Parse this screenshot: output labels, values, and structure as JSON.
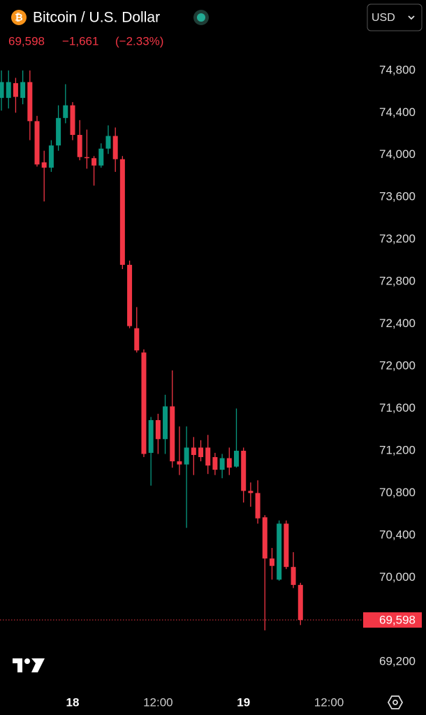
{
  "header": {
    "symbol": "Bitcoin / U.S. Dollar",
    "price": "69,598",
    "change": "−1,661",
    "change_percent": "(−2.33%)",
    "currency": "USD"
  },
  "chart_data": {
    "type": "candlestick",
    "x": [
      -10,
      -9,
      -8,
      -7,
      -6,
      -5,
      -4,
      -3,
      -2,
      -1,
      0,
      1,
      2,
      3,
      4,
      5,
      6,
      7,
      8,
      9,
      10,
      11,
      12,
      13,
      14,
      15,
      16,
      17,
      18,
      19,
      20,
      21,
      22,
      23,
      24,
      25,
      26,
      27,
      28,
      29,
      30,
      31,
      32
    ],
    "open": [
      74540,
      74540,
      74680,
      74540,
      74690,
      74320,
      73930,
      73880,
      74090,
      74350,
      74470,
      74190,
      73980,
      73970,
      73900,
      74060,
      74180,
      73960,
      72960,
      72360,
      72130,
      71180,
      71490,
      71310,
      71620,
      71100,
      71070,
      71230,
      71230,
      71230,
      71140,
      71020,
      71130,
      71050,
      71200,
      70820,
      70800,
      70570,
      70180,
      69980,
      70510,
      70100,
      69930
    ],
    "high": [
      74800,
      74800,
      74730,
      74800,
      74800,
      74370,
      74040,
      74140,
      74470,
      74670,
      74500,
      74330,
      74240,
      73990,
      74110,
      74280,
      74260,
      73990,
      73000,
      72560,
      72160,
      71520,
      71550,
      71730,
      71960,
      71430,
      71430,
      71330,
      71300,
      71350,
      71180,
      71170,
      71230,
      71600,
      71230,
      70900,
      70920,
      70590,
      70280,
      70540,
      70540,
      70240,
      69950
    ],
    "low": [
      74420,
      74440,
      74400,
      74480,
      74140,
      73890,
      73560,
      73840,
      74040,
      74300,
      74140,
      73950,
      73870,
      73710,
      73880,
      74010,
      73840,
      72920,
      72360,
      72130,
      71140,
      70870,
      71170,
      71170,
      71040,
      70970,
      70470,
      70970,
      71100,
      70980,
      70970,
      70940,
      70970,
      71040,
      70710,
      70670,
      70510,
      69500,
      69980,
      69970,
      70080,
      69900,
      69550
    ],
    "close": [
      74690,
      74690,
      74550,
      74690,
      74320,
      73910,
      73880,
      74090,
      74350,
      74470,
      74190,
      73980,
      73970,
      73900,
      74060,
      74180,
      73960,
      72960,
      72380,
      72150,
      71170,
      71490,
      71310,
      71620,
      71100,
      71070,
      71230,
      71160,
      71140,
      71060,
      71020,
      71130,
      71040,
      71200,
      70820,
      70800,
      70560,
      70180,
      70110,
      70510,
      70100,
      69930,
      69598
    ],
    "up_color": "#089981",
    "down_color": "#f23645",
    "xlim": [
      -10.2,
      40.8
    ],
    "xticks": [
      {
        "value": 0,
        "label": "18"
      },
      {
        "value": 12,
        "label": "12:00"
      },
      {
        "value": 24,
        "label": "19"
      },
      {
        "value": 36,
        "label": "12:00"
      }
    ],
    "ylim": [
      68950,
      75070
    ],
    "yticks": [
      {
        "value": 69200,
        "label": "69,200"
      },
      {
        "value": 69600,
        "label": "69,600"
      },
      {
        "value": 70000,
        "label": "70,000"
      },
      {
        "value": 70400,
        "label": "70,400"
      },
      {
        "value": 70800,
        "label": "70,800"
      },
      {
        "value": 71200,
        "label": "71,200"
      },
      {
        "value": 71600,
        "label": "71,600"
      },
      {
        "value": 72000,
        "label": "72,000"
      },
      {
        "value": 72400,
        "label": "72,400"
      },
      {
        "value": 72800,
        "label": "72,800"
      },
      {
        "value": 73200,
        "label": "73,200"
      },
      {
        "value": 73600,
        "label": "73,600"
      },
      {
        "value": 74000,
        "label": "74,000"
      },
      {
        "value": 74400,
        "label": "74,400"
      },
      {
        "value": 74800,
        "label": "74,800"
      }
    ],
    "last_price": {
      "value": 69598,
      "label": "69,598"
    }
  }
}
